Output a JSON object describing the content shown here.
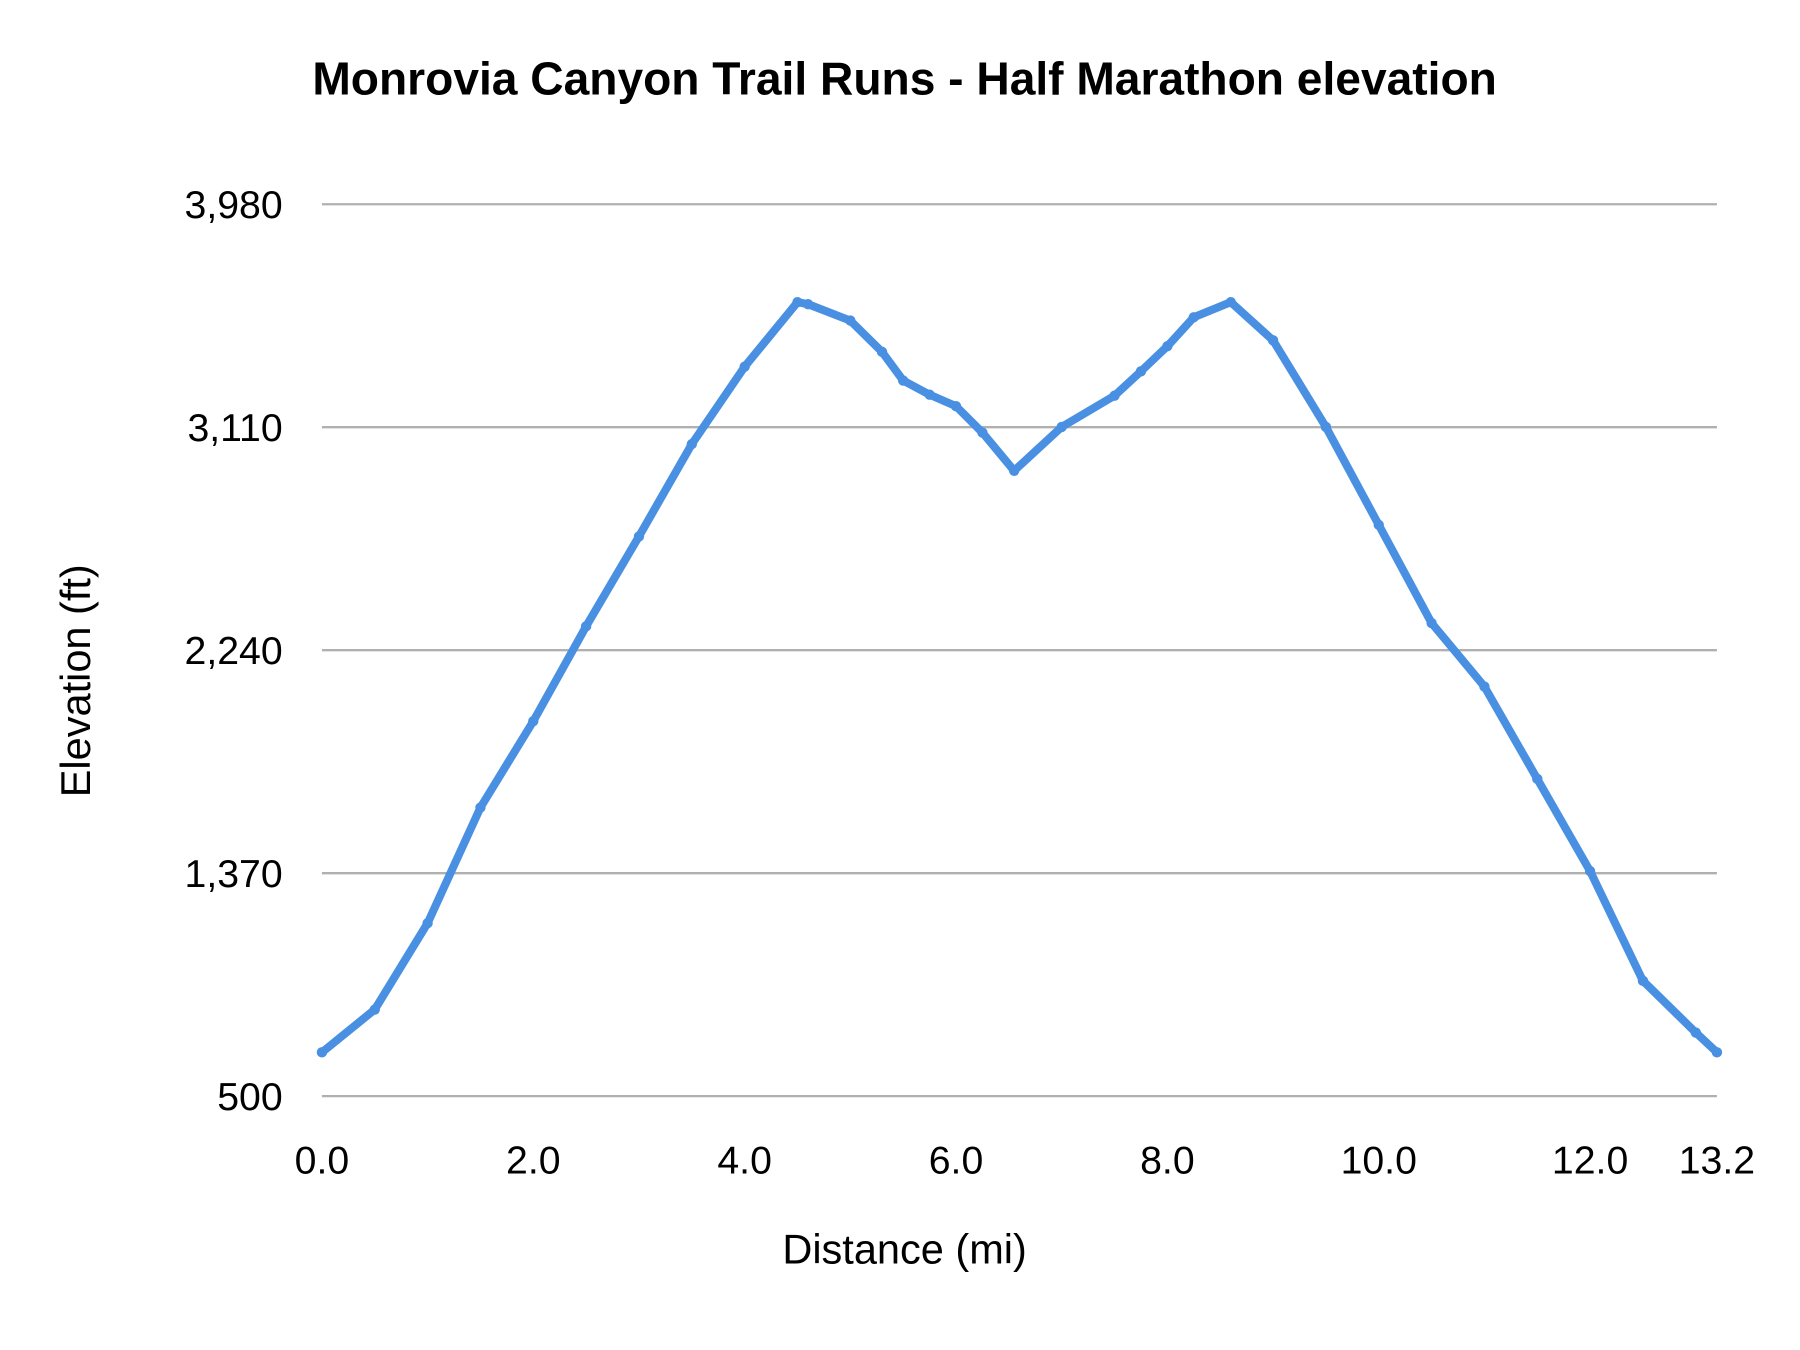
{
  "chart_data": {
    "type": "line",
    "title": "Monrovia Canyon Trail Runs - Half Marathon elevation",
    "xlabel": "Distance (mi)",
    "ylabel": "Elevation (ft)",
    "xlim": [
      0,
      13.2
    ],
    "ylim": [
      500,
      3980
    ],
    "x_ticks": [
      "0.0",
      "2.0",
      "4.0",
      "6.0",
      "8.0",
      "10.0",
      "12.0",
      "13.2"
    ],
    "x_tick_values": [
      0,
      2,
      4,
      6,
      8,
      10,
      12,
      13.2
    ],
    "y_ticks": [
      "500",
      "1,370",
      "2,240",
      "3,110",
      "3,980"
    ],
    "y_tick_values": [
      500,
      1370,
      2240,
      3110,
      3980
    ],
    "grid": "horizontal",
    "legend": "none",
    "color": "#4a90e2",
    "series": [
      {
        "x": [
          0,
          0.5,
          1.0,
          1.5,
          2.0,
          2.5,
          3.0,
          3.5,
          4.0,
          4.5,
          4.6,
          5.0,
          5.3,
          5.5,
          5.75,
          6.0,
          6.25,
          6.55,
          7.0,
          7.5,
          7.75,
          8.0,
          8.25,
          8.6,
          9.0,
          9.5,
          10.0,
          10.5,
          11.0,
          11.5,
          12.0,
          12.5,
          13.0,
          13.2
        ],
        "y": [
          671,
          838,
          1175,
          1626,
          1963,
          2333,
          2684,
          3044,
          3346,
          3598,
          3590,
          3526,
          3404,
          3292,
          3237,
          3192,
          3089,
          2940,
          3111,
          3233,
          3328,
          3426,
          3539,
          3598,
          3449,
          3111,
          2729,
          2346,
          2098,
          1738,
          1378,
          950,
          748,
          671
        ]
      }
    ]
  }
}
